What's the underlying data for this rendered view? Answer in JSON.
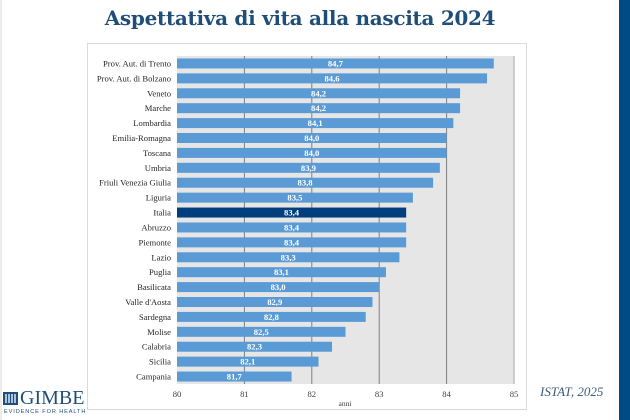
{
  "title": "Aspettativa di vita alla nascita 2024",
  "source": "ISTAT, 2025",
  "logo": {
    "name": "GIMBE",
    "tagline": "EVIDENCE FOR HEALTH",
    "icon": "gimbe-logo-icon"
  },
  "colors": {
    "title": "#1f4e79",
    "bar": "#5b9bd5",
    "highlight_bar": "#003f7d",
    "plot_background": "#e6e6e6",
    "gridline": "#7f7f7f",
    "side_strip": "#004a85"
  },
  "chart_data": {
    "type": "bar",
    "orientation": "horizontal",
    "title": "Aspettativa di vita alla nascita 2024",
    "xlabel": "anni",
    "ylabel": "",
    "xlim": [
      80,
      85
    ],
    "xticks": [
      "80",
      "81",
      "82",
      "83",
      "84",
      "85"
    ],
    "grid": true,
    "highlight": "Italia",
    "categories": [
      "Prov. Aut. di Trento",
      "Prov. Aut. di Bolzano",
      "Veneto",
      "Marche",
      "Lombardia",
      "Emilia-Romagna",
      "Toscana",
      "Umbria",
      "Friuli Venezia Giulia",
      "Liguria",
      "Italia",
      "Abruzzo",
      "Piemonte",
      "Lazio",
      "Puglia",
      "Basilicata",
      "Valle d'Aosta",
      "Sardegna",
      "Molise",
      "Calabria",
      "Sicilia",
      "Campania"
    ],
    "values": [
      84.7,
      84.6,
      84.2,
      84.2,
      84.1,
      84.0,
      84.0,
      83.9,
      83.8,
      83.5,
      83.4,
      83.4,
      83.4,
      83.3,
      83.1,
      83.0,
      82.9,
      82.8,
      82.5,
      82.3,
      82.1,
      81.7
    ],
    "value_labels": [
      "84,7",
      "84,6",
      "84,2",
      "84,2",
      "84,1",
      "84,0",
      "84,0",
      "83,9",
      "83,8",
      "83,5",
      "83,4",
      "83,4",
      "83,4",
      "83,3",
      "83,1",
      "83,0",
      "82,9",
      "82,8",
      "82,5",
      "82,3",
      "82,1",
      "81,7"
    ]
  }
}
